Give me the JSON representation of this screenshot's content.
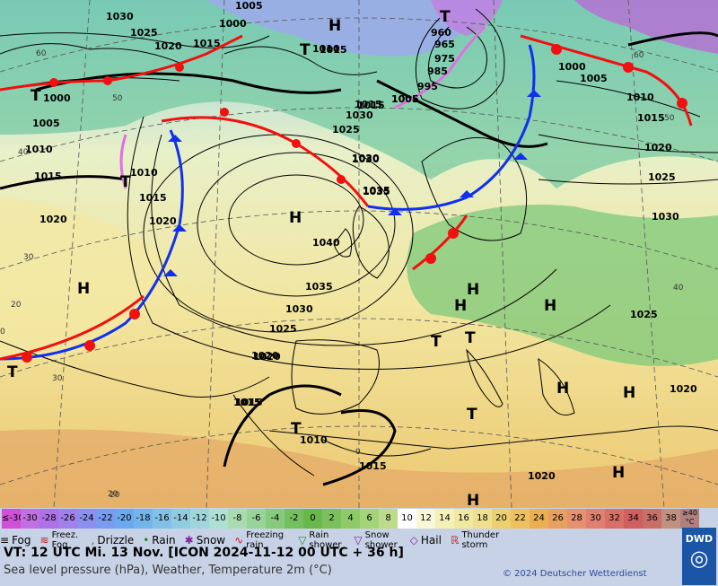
{
  "map": {
    "pressure_centers": [
      {
        "type": "H",
        "id": "h1"
      },
      {
        "type": "H",
        "id": "h2"
      },
      {
        "type": "H",
        "id": "h3"
      },
      {
        "type": "H",
        "id": "h4"
      },
      {
        "type": "H",
        "id": "h5"
      },
      {
        "type": "H",
        "id": "h6"
      },
      {
        "type": "H",
        "id": "h7"
      },
      {
        "type": "H",
        "id": "h8"
      },
      {
        "type": "H",
        "id": "h9"
      },
      {
        "type": "H",
        "id": "h10"
      },
      {
        "type": "T",
        "id": "t1"
      },
      {
        "type": "T",
        "id": "t2"
      },
      {
        "type": "T",
        "id": "t3"
      },
      {
        "type": "T",
        "id": "t4"
      },
      {
        "type": "T",
        "id": "t5"
      },
      {
        "type": "T",
        "id": "t6"
      },
      {
        "type": "T",
        "id": "t7"
      },
      {
        "type": "T",
        "id": "t8"
      },
      {
        "type": "T",
        "id": "t9"
      }
    ],
    "isobar_labels": [
      "1030",
      "1025",
      "1020",
      "1015",
      "1005",
      "1000",
      "1005",
      "1010",
      "1015",
      "1020",
      "1030",
      "1035",
      "1040",
      "1035",
      "1030",
      "1025",
      "1020",
      "1015",
      "1010",
      "1015",
      "1020",
      "1025",
      "1030",
      "1015",
      "1010",
      "1005",
      "1000",
      "995",
      "985",
      "975",
      "965",
      "960",
      "1000",
      "1005",
      "1010",
      "1015",
      "1020",
      "1025",
      "1030",
      "1025",
      "1020",
      "1015",
      "1020",
      "1015",
      "1005",
      "1015",
      "1010",
      "1030",
      "1035",
      "1020",
      "1015"
    ],
    "grid_labels": [
      "60",
      "50",
      "40",
      "30",
      "20",
      "0",
      "0",
      "60",
      "50",
      "40",
      "30",
      "20",
      "20"
    ]
  },
  "legend": {
    "temp_scale": [
      "≤-30",
      "-30",
      "-28",
      "-26",
      "-24",
      "-22",
      "-20",
      "-18",
      "-16",
      "-14",
      "-12",
      "-10",
      "-8",
      "-6",
      "-4",
      "-2",
      "0",
      "2",
      "4",
      "6",
      "8",
      "10",
      "12",
      "14",
      "16",
      "18",
      "20",
      "22",
      "24",
      "26",
      "28",
      "30",
      "32",
      "34",
      "36",
      "38",
      "≥40 °C"
    ],
    "temp_colors": [
      "#d050d8",
      "#c070e0",
      "#b070e8",
      "#a080ea",
      "#8c8ef0",
      "#7a9cf0",
      "#6aa8f0",
      "#74b4ec",
      "#82c0e8",
      "#90cce0",
      "#9ed6dc",
      "#aee0d4",
      "#a8dcb0",
      "#98d49a",
      "#86ca7e",
      "#74c060",
      "#68b84a",
      "#7cc05e",
      "#90ca68",
      "#a4d47a",
      "#bcdc8c",
      "#ffffff",
      "#f8f8d8",
      "#f4f0b8",
      "#f0e8a0",
      "#eee090",
      "#ecd070",
      "#eec060",
      "#eab050",
      "#e8a060",
      "#e69070",
      "#e08070",
      "#d87068",
      "#d06060",
      "#c87068",
      "#c09080",
      "#b08080"
    ],
    "weather_items": [
      "Fog",
      "Freez. Fog",
      "Drizzle",
      "Rain",
      "Snow",
      "Freezing rain",
      "Rain shower",
      "Snow shower",
      "Hail",
      "Thunder storm"
    ],
    "valid_time": "VT: 12 UTC Mi.  13 Nov. [ICON 2024-11-12  00 UTC + 36 h]",
    "parameters": "Sea level pressure (hPa), Weather, Temperature 2m (°C)",
    "copyright": "© 2024 Deutscher Wetterdienst",
    "logo_text": "DWD"
  }
}
